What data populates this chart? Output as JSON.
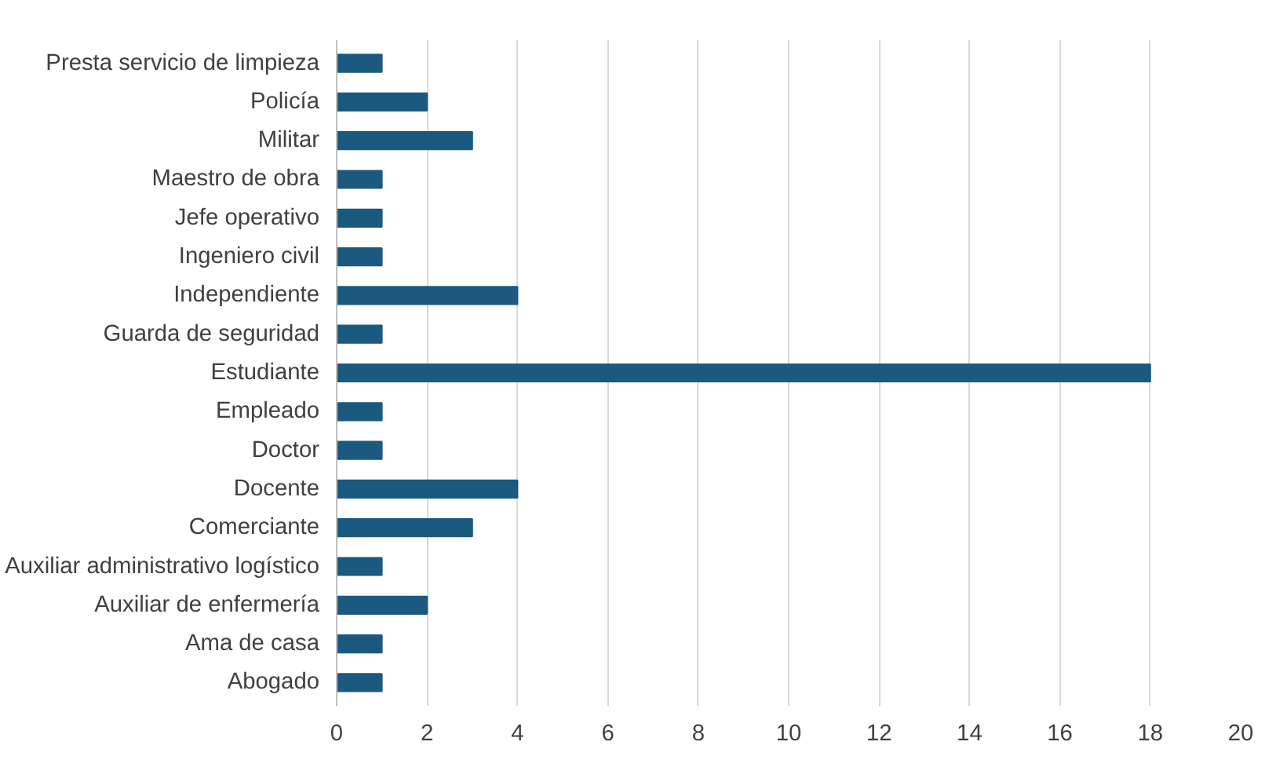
{
  "chart_data": {
    "type": "bar",
    "orientation": "horizontal",
    "categories": [
      "Presta servicio de limpieza",
      "Policía",
      "Militar",
      "Maestro de obra",
      "Jefe operativo",
      "Ingeniero civil",
      "Independiente",
      "Guarda de seguridad",
      "Estudiante",
      "Empleado",
      "Doctor",
      "Docente",
      "Comerciante",
      "Auxiliar administrativo logístico",
      "Auxiliar de enfermería",
      "Ama de casa",
      "Abogado"
    ],
    "values": [
      1,
      2,
      3,
      1,
      1,
      1,
      4,
      1,
      18,
      1,
      1,
      4,
      3,
      1,
      2,
      1,
      1
    ],
    "color": "#1b5a7e",
    "xlim": [
      0,
      20
    ],
    "xticks": [
      0,
      2,
      4,
      6,
      8,
      10,
      12,
      14,
      16,
      18,
      20
    ],
    "grid": "x"
  }
}
